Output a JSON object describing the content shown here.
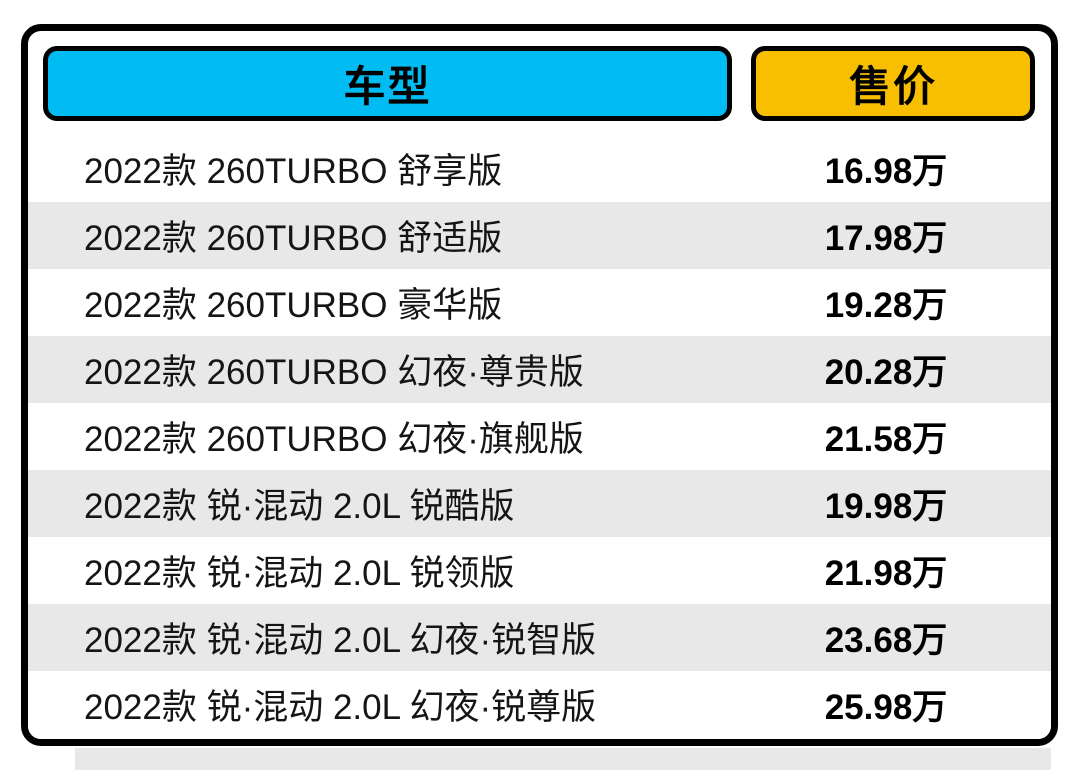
{
  "chart_data": {
    "type": "table",
    "title": "",
    "columns": [
      "车型",
      "售价"
    ],
    "rows": [
      [
        "2022款 260TURBO 舒享版",
        "16.98万"
      ],
      [
        "2022款 260TURBO 舒适版",
        "17.98万"
      ],
      [
        "2022款 260TURBO 豪华版",
        "19.28万"
      ],
      [
        "2022款 260TURBO 幻夜·尊贵版",
        "20.28万"
      ],
      [
        "2022款 260TURBO 幻夜·旗舰版",
        "21.58万"
      ],
      [
        "2022款 锐·混动 2.0L 锐酷版",
        "19.98万"
      ],
      [
        "2022款 锐·混动 2.0L 锐领版",
        "21.98万"
      ],
      [
        "2022款 锐·混动 2.0L 幻夜·锐智版",
        "23.68万"
      ],
      [
        "2022款 锐·混动 2.0L 幻夜·锐尊版",
        "25.98万"
      ]
    ],
    "prices_wan": [
      16.98,
      17.98,
      19.28,
      20.28,
      21.58,
      19.98,
      21.98,
      23.68,
      25.98
    ],
    "layout": {
      "alternating_row_shading": true,
      "legend": "none",
      "grid": "off"
    }
  },
  "colors": {
    "model_header_bg": "#00bcf2",
    "price_header_bg": "#f8be00",
    "border": "#000000",
    "row_alt_bg": "#e8e8e8",
    "text": "#000000"
  }
}
